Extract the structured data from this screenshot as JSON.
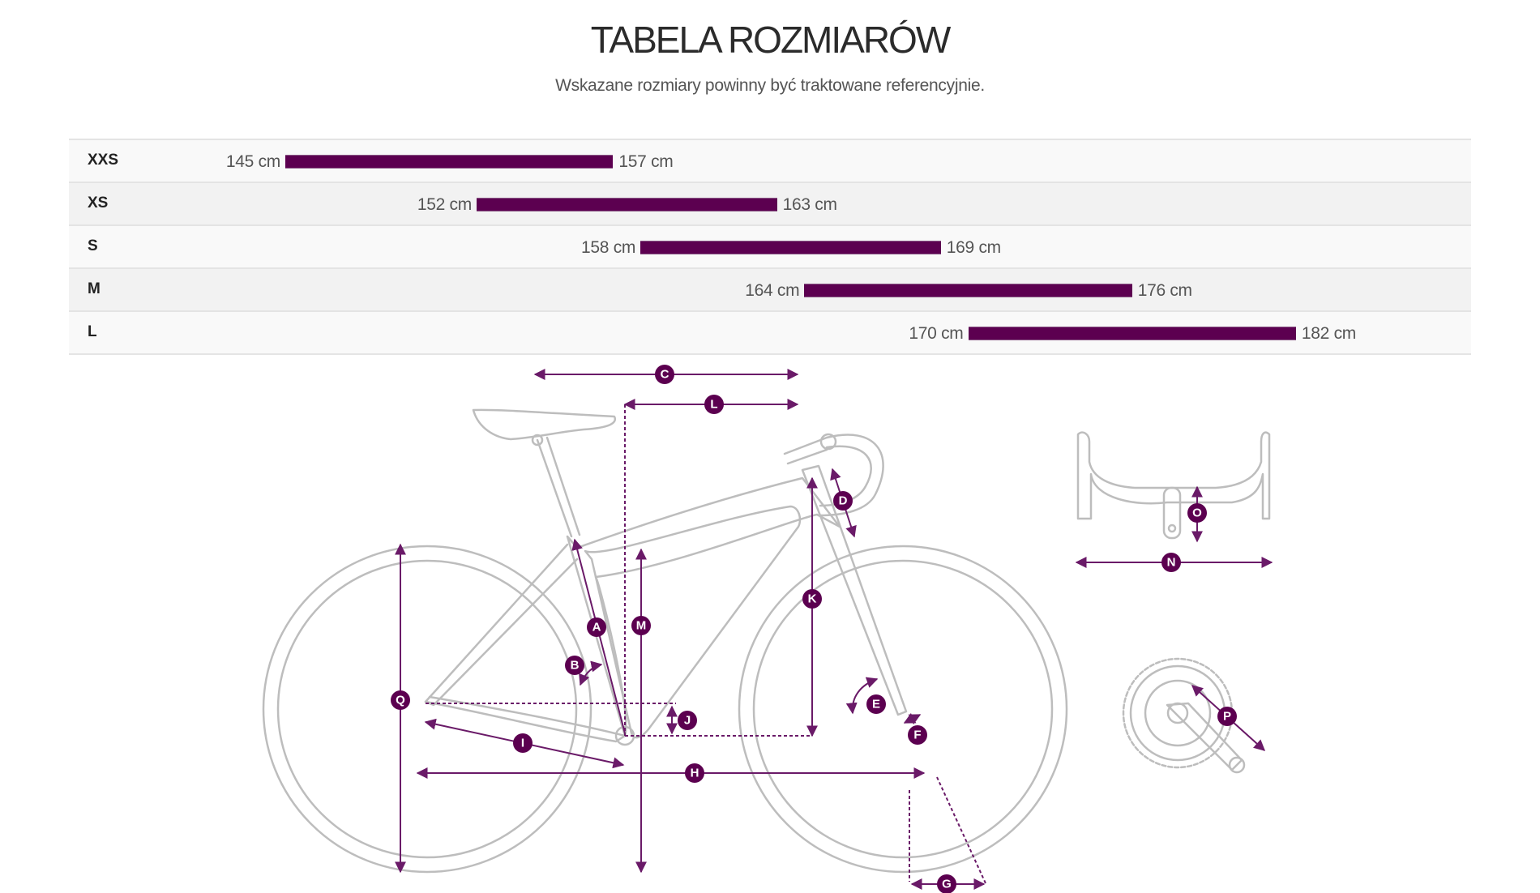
{
  "header": {
    "title": "TABELA ROZMIARÓW",
    "subtitle": "Wskazane rozmiary powinny być traktowane referencyjnie."
  },
  "scale": {
    "min_cm": 145,
    "max_cm": 182
  },
  "sizes": [
    {
      "size": "XXS",
      "min": 145,
      "max": 157,
      "min_label": "145 cm",
      "max_label": "157 cm"
    },
    {
      "size": "XS",
      "min": 152,
      "max": 163,
      "min_label": "152 cm",
      "max_label": "163 cm"
    },
    {
      "size": "S",
      "min": 158,
      "max": 169,
      "min_label": "158 cm",
      "max_label": "169 cm"
    },
    {
      "size": "M",
      "min": 164,
      "max": 176,
      "min_label": "164 cm",
      "max_label": "176 cm"
    },
    {
      "size": "L",
      "min": 170,
      "max": 182,
      "min_label": "170 cm",
      "max_label": "182 cm"
    }
  ],
  "colors": {
    "bar": "#5c0050",
    "dimension": "#6a1a68",
    "bike": "#bdbdbd"
  },
  "diagram": {
    "labels": {
      "A": "A",
      "B": "B",
      "C": "C",
      "D": "D",
      "E": "E",
      "F": "F",
      "G": "G",
      "H": "H",
      "I": "I",
      "J": "J",
      "K": "K",
      "L": "L",
      "M": "M",
      "N": "N",
      "O": "O",
      "P": "P",
      "Q": "Q"
    }
  }
}
